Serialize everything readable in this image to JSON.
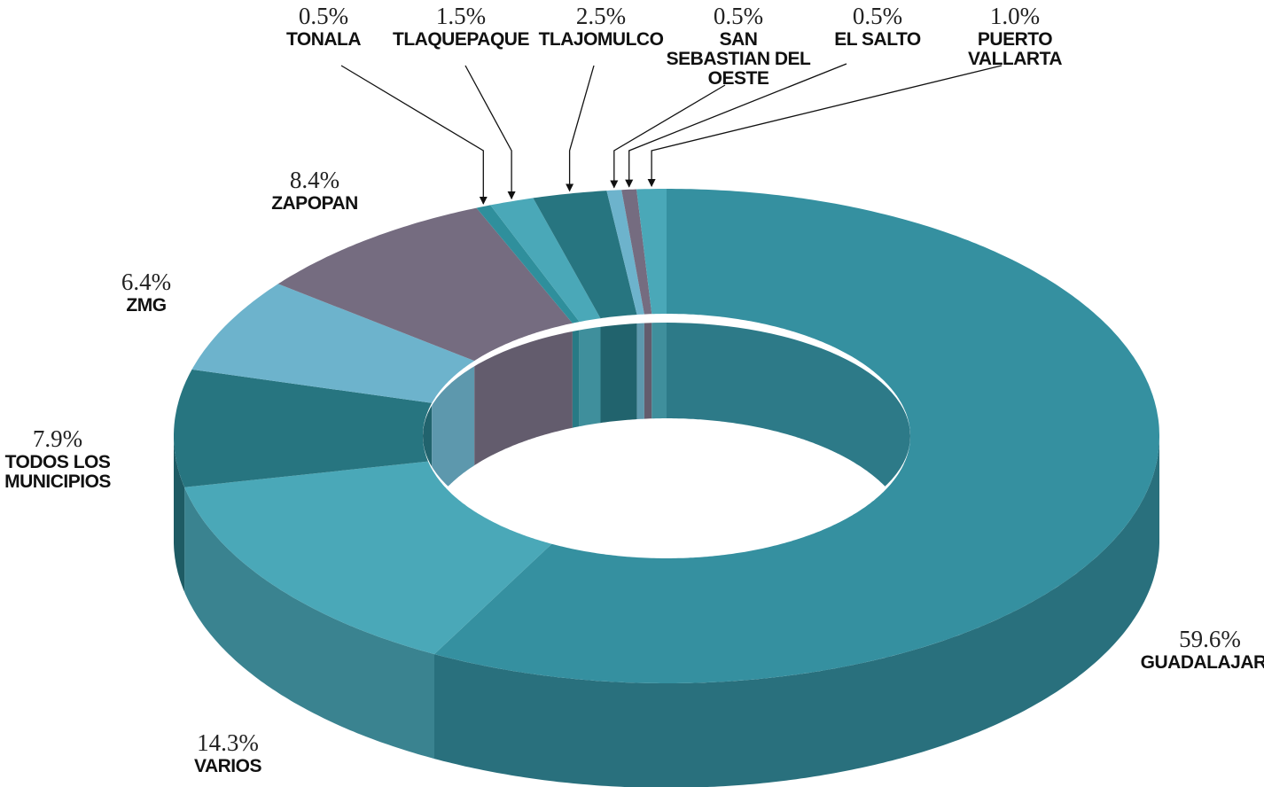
{
  "chart_data": {
    "type": "donut3d",
    "categories": [
      "GUADALAJARA",
      "VARIOS",
      "TODOS LOS MUNICIPIOS",
      "ZMG",
      "ZAPOPAN",
      "TONALA",
      "TLAQUEPAQUE",
      "TLAJOMULCO",
      "SAN SEBASTIAN DEL OESTE",
      "EL SALTO",
      "PUERTO VALLARTA"
    ],
    "values": [
      59.6,
      14.3,
      7.9,
      6.4,
      8.4,
      0.5,
      1.5,
      2.5,
      0.5,
      0.5,
      1.0
    ],
    "value_labels": [
      "59.6%",
      "14.3%",
      "7.9%",
      "6.4%",
      "8.4%",
      "0.5%",
      "1.5%",
      "2.5%",
      "0.5%",
      "0.5%",
      "1.0%"
    ],
    "colors": [
      "#3590a0",
      "#4aa8b8",
      "#277580",
      "#6db3cc",
      "#756c80",
      "#2f8f9c",
      "#4aa8b8",
      "#277580",
      "#6db3cc",
      "#756c80",
      "#4aa8b8"
    ]
  }
}
